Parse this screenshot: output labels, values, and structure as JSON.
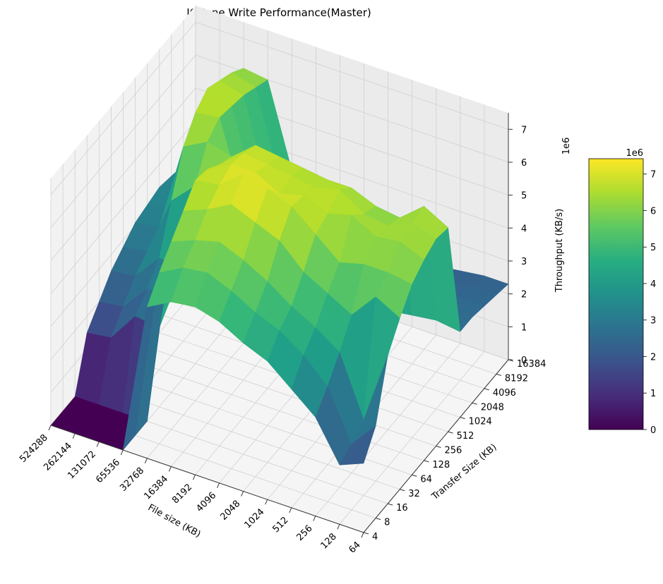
{
  "chart_data": {
    "type": "surface3d",
    "title": "IOZone Write Performance(Master)",
    "xlabel": "File size (KB)",
    "ylabel": "Transfer Size (KB)",
    "zlabel": "Throughput (KB/s)",
    "z_offset_label": "1e6",
    "colorbar_offset_label": "1e6",
    "colormap": "viridis",
    "x_ticks": [
      "64",
      "128",
      "256",
      "512",
      "1024",
      "2048",
      "4096",
      "8192",
      "16384",
      "32768",
      "65536",
      "131072",
      "262144",
      "524288"
    ],
    "y_ticks": [
      "4",
      "8",
      "16",
      "32",
      "64",
      "128",
      "256",
      "512",
      "1024",
      "2048",
      "4096",
      "8192",
      "16384"
    ],
    "z_ticks": [
      "0",
      "1",
      "2",
      "3",
      "4",
      "5",
      "6",
      "7"
    ],
    "colorbar_ticks": [
      "0",
      "1",
      "2",
      "3",
      "4",
      "5",
      "6",
      "7"
    ],
    "zlim": [
      0,
      7500000
    ],
    "clim": [
      0,
      7420000
    ],
    "z_unit_factor": 1000000,
    "grid": true,
    "z": [
      [
        2.1,
        2.8,
        4.5,
        5.2,
        5.8,
        6.1,
        6.3,
        6.2,
        2.6,
        2.6,
        2.5,
        2.4,
        2.3
      ],
      [
        1.8,
        2.0,
        2.3,
        5.6,
        5.9,
        6.4,
        6.5,
        6.6,
        2.7,
        2.6,
        2.5,
        2.4,
        2.3
      ],
      [
        3.0,
        3.5,
        4.1,
        4.8,
        5.9,
        6.3,
        6.2,
        6.0,
        2.6,
        2.5,
        2.4,
        2.3,
        2.2
      ],
      [
        3.6,
        4.2,
        4.6,
        5.2,
        5.7,
        6.7,
        6.3,
        6.1,
        2.5,
        2.4,
        2.3,
        2.2,
        2.1
      ],
      [
        4.2,
        4.7,
        5.0,
        5.6,
        6.3,
        6.5,
        6.8,
        6.4,
        2.4,
        2.3,
        2.2,
        2.1,
        2.0
      ],
      [
        4.5,
        5.0,
        5.5,
        6.3,
        6.9,
        6.8,
        6.6,
        6.4,
        2.3,
        2.2,
        2.1,
        2.0,
        1.9
      ],
      [
        4.9,
        5.4,
        5.9,
        6.6,
        7.2,
        6.6,
        6.7,
        6.5,
        2.2,
        2.1,
        2.0,
        1.9,
        1.8
      ],
      [
        5.1,
        5.7,
        6.2,
        6.9,
        7.4,
        7.0,
        6.8,
        6.6,
        2.3,
        2.2,
        2.1,
        2.0,
        1.9
      ],
      [
        5.0,
        5.6,
        6.0,
        6.5,
        6.8,
        7.0,
        6.9,
        6.7,
        4.0,
        3.8,
        3.6,
        3.4,
        3.3
      ],
      [
        4.6,
        5.2,
        5.7,
        6.2,
        6.7,
        6.6,
        6.3,
        6.1,
        4.2,
        4.0,
        3.8,
        3.6,
        3.5
      ],
      [
        0.0,
        0.0,
        0.0,
        2.4,
        2.9,
        3.3,
        5.4,
        6.3,
        6.6,
        6.5,
        6.4,
        6.2,
        6.0
      ],
      [
        0.0,
        0.0,
        0.0,
        2.5,
        2.9,
        3.4,
        4.7,
        5.9,
        6.5,
        6.8,
        6.6,
        6.4,
        6.1
      ],
      [
        0.0,
        0.0,
        0.0,
        1.6,
        2.1,
        2.6,
        2.9,
        3.2,
        3.4,
        3.5,
        3.4,
        3.3,
        3.2
      ],
      [
        0.0,
        0.0,
        0.0,
        1.5,
        2.0,
        2.5,
        2.8,
        3.1,
        3.2,
        3.3,
        3.2,
        3.1,
        3.0
      ]
    ]
  }
}
